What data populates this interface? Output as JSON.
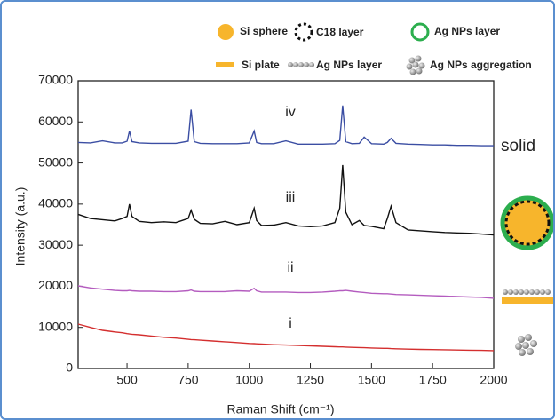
{
  "chart_data": {
    "type": "line",
    "x_label": "Raman Shift (cm⁻¹)",
    "y_label": "Intensity (a.u.)",
    "side_label": "solid",
    "xlim": [
      300,
      2000
    ],
    "ylim": [
      0,
      70000
    ],
    "xticks": [
      500,
      750,
      1000,
      1250,
      1500,
      1750,
      2000
    ],
    "yticks": [
      0,
      10000,
      20000,
      30000,
      40000,
      50000,
      60000,
      70000
    ],
    "legend_items": [
      "Si sphere",
      "C18 layer",
      "Ag NPs layer",
      "Si plate",
      "Ag NPs layer",
      "Ag NPs aggregation"
    ],
    "x": [
      300,
      350,
      400,
      450,
      480,
      500,
      510,
      520,
      550,
      600,
      650,
      700,
      750,
      762,
      775,
      800,
      850,
      900,
      950,
      1000,
      1020,
      1030,
      1050,
      1100,
      1150,
      1200,
      1250,
      1300,
      1350,
      1370,
      1382,
      1395,
      1420,
      1450,
      1470,
      1500,
      1550,
      1565,
      1580,
      1600,
      1650,
      1700,
      1750,
      1800,
      1850,
      1900,
      1950,
      2000
    ],
    "series": [
      {
        "name": "iv",
        "color": "#3b4ea3",
        "values": [
          55000,
          54900,
          55400,
          54900,
          54900,
          55300,
          57800,
          55200,
          54900,
          54800,
          54800,
          54800,
          55300,
          63000,
          55200,
          54800,
          54700,
          54700,
          54700,
          54900,
          57800,
          55000,
          54700,
          54700,
          55400,
          54600,
          54600,
          54600,
          54700,
          55500,
          64000,
          55200,
          54700,
          54800,
          56300,
          54700,
          54600,
          55000,
          56000,
          54800,
          54600,
          54500,
          54400,
          54400,
          54300,
          54300,
          54200,
          54200
        ]
      },
      {
        "name": "iii",
        "color": "#111111",
        "values": [
          37500,
          36500,
          36200,
          35900,
          36500,
          37000,
          40000,
          37000,
          35800,
          35500,
          35700,
          35500,
          36500,
          38500,
          36300,
          35300,
          35200,
          35800,
          35000,
          35500,
          39000,
          36000,
          34800,
          34900,
          35500,
          34700,
          34500,
          34700,
          35500,
          39000,
          49500,
          38000,
          35000,
          36000,
          34800,
          34600,
          34000,
          36500,
          39500,
          35500,
          33700,
          33500,
          33300,
          33100,
          33000,
          32900,
          32700,
          32500
        ]
      },
      {
        "name": "ii",
        "color": "#b45cbf",
        "values": [
          20100,
          19600,
          19300,
          19000,
          18900,
          18900,
          19000,
          18900,
          18800,
          18800,
          18700,
          18700,
          18900,
          19100,
          18800,
          18700,
          18700,
          18700,
          18900,
          18800,
          19500,
          18900,
          18600,
          18600,
          18600,
          18500,
          18500,
          18600,
          18800,
          18900,
          18900,
          19000,
          18800,
          18600,
          18500,
          18300,
          18200,
          18200,
          18100,
          18000,
          17900,
          17800,
          17700,
          17600,
          17500,
          17400,
          17300,
          17100
        ]
      },
      {
        "name": "i",
        "color": "#d42f2f",
        "values": [
          10800,
          10000,
          9300,
          8900,
          8700,
          8500,
          8400,
          8350,
          8200,
          7900,
          7600,
          7400,
          7100,
          7050,
          7000,
          6900,
          6700,
          6500,
          6300,
          6100,
          6050,
          6000,
          5950,
          5800,
          5700,
          5600,
          5500,
          5400,
          5300,
          5250,
          5250,
          5200,
          5150,
          5100,
          5050,
          5000,
          4900,
          4900,
          4850,
          4800,
          4700,
          4650,
          4600,
          4550,
          4500,
          4450,
          4400,
          4350
        ]
      }
    ]
  }
}
